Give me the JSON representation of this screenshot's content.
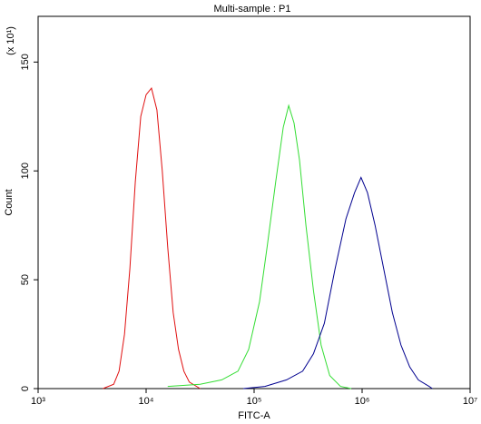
{
  "chart_data": {
    "type": "line",
    "title": "Multi-sample : P1",
    "x_label": "FITC-A",
    "y_label": "Count",
    "y_unit": "(x 10¹)",
    "x_log": true,
    "xlim": [
      1000,
      10000000
    ],
    "xticks": [
      {
        "value": 1000,
        "label": "10³"
      },
      {
        "value": 10000,
        "label": "10⁴"
      },
      {
        "value": 100000,
        "label": "10⁵"
      },
      {
        "value": 1000000,
        "label": "10⁶"
      },
      {
        "value": 10000000,
        "label": "10⁷"
      }
    ],
    "ylim": [
      0,
      171
    ],
    "yticks": [
      0,
      50,
      100,
      150
    ],
    "series": [
      {
        "color": "#e01010",
        "x": [
          3981,
          5012,
          5623,
          6310,
          7079,
          7943,
          8913,
          10000,
          11220,
          12589,
          14125,
          15849,
          17783,
          19953,
          22387,
          25119,
          31623
        ],
        "values": [
          0,
          2,
          8,
          25,
          55,
          95,
          125,
          135,
          138,
          128,
          100,
          65,
          35,
          18,
          8,
          3,
          0
        ]
      },
      {
        "color": "#33dd33",
        "x": [
          15849,
          31623,
          50119,
          70795,
          89125,
          112202,
          131826,
          158489,
          186209,
          208930,
          234423,
          263027,
          301995,
          354813,
          416869,
          501187,
          630957,
          794328
        ],
        "values": [
          1,
          2,
          4,
          8,
          18,
          40,
          65,
          95,
          120,
          130,
          122,
          105,
          75,
          45,
          20,
          6,
          1,
          0
        ]
      },
      {
        "color": "#00008f",
        "x": [
          79433,
          125893,
          199526,
          281838,
          354813,
          446684,
          562341,
          707946,
          851138,
          977237,
          1122018,
          1318257,
          1584893,
          1905461,
          2290868,
          2754229,
          3311311,
          4168694,
          4466836
        ],
        "values": [
          0,
          1,
          4,
          8,
          16,
          30,
          55,
          78,
          90,
          97,
          90,
          75,
          55,
          35,
          20,
          10,
          4,
          1,
          0
        ]
      }
    ]
  }
}
